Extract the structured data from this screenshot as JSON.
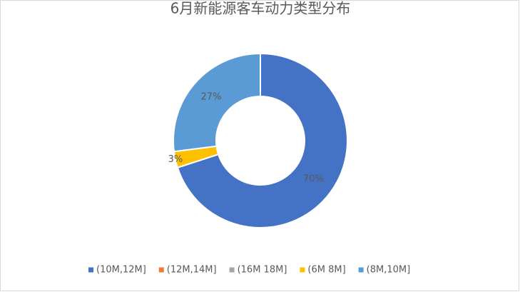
{
  "chart_data": {
    "type": "donut",
    "title": "6月新能源客车动力类型分布",
    "categories": [
      "(10M,12M]",
      "(12M,14M]",
      "(16M 18M]",
      "(6M 8M]",
      "(8M,10M]"
    ],
    "values": [
      70,
      0,
      0,
      3,
      27
    ],
    "value_labels": [
      "70%",
      null,
      null,
      "3%",
      "27%"
    ],
    "colors": [
      "#4472c4",
      "#ed7d31",
      "#a5a5a5",
      "#ffc000",
      "#5b9bd5"
    ],
    "legend": "bottom"
  }
}
